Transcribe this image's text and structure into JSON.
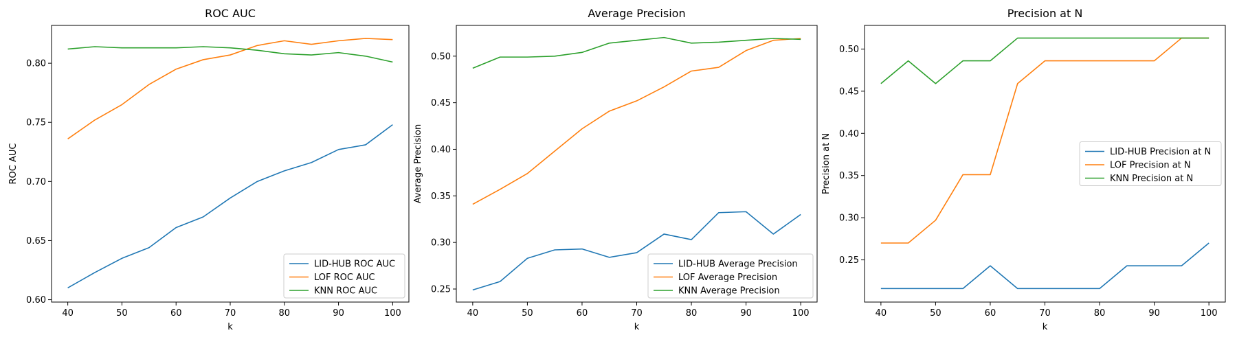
{
  "colors": {
    "blue": "#1f77b4",
    "orange": "#ff7f0e",
    "green": "#2ca02c"
  },
  "chart_data": [
    {
      "type": "line",
      "title": "ROC AUC",
      "xlabel": "k",
      "ylabel": "ROC AUC",
      "x": [
        40,
        45,
        50,
        55,
        60,
        65,
        70,
        75,
        80,
        85,
        90,
        95,
        100
      ],
      "xlim": [
        37,
        103
      ],
      "ylim": [
        0.598,
        0.832
      ],
      "xticks": [
        40,
        50,
        60,
        70,
        80,
        90,
        100
      ],
      "yticks": [
        0.6,
        0.65,
        0.7,
        0.75,
        0.8
      ],
      "ytick_decimals": 2,
      "legend_position": "bottom-right",
      "grid": false,
      "series": [
        {
          "name": "LID-HUB ROC AUC",
          "color": "#1f77b4",
          "values": [
            0.61,
            0.623,
            0.635,
            0.644,
            0.661,
            0.67,
            0.686,
            0.7,
            0.709,
            0.716,
            0.727,
            0.731,
            0.748
          ]
        },
        {
          "name": "LOF ROC AUC",
          "color": "#ff7f0e",
          "values": [
            0.736,
            0.752,
            0.765,
            0.782,
            0.795,
            0.803,
            0.807,
            0.815,
            0.819,
            0.816,
            0.819,
            0.821,
            0.82
          ]
        },
        {
          "name": "KNN ROC AUC",
          "color": "#2ca02c",
          "values": [
            0.812,
            0.814,
            0.813,
            0.813,
            0.813,
            0.814,
            0.813,
            0.811,
            0.808,
            0.807,
            0.809,
            0.806,
            0.801
          ]
        }
      ]
    },
    {
      "type": "line",
      "title": "Average Precision",
      "xlabel": "k",
      "ylabel": "Average Precision",
      "x": [
        40,
        45,
        50,
        55,
        60,
        65,
        70,
        75,
        80,
        85,
        90,
        95,
        100
      ],
      "xlim": [
        37,
        103
      ],
      "ylim": [
        0.236,
        0.533
      ],
      "xticks": [
        40,
        50,
        60,
        70,
        80,
        90,
        100
      ],
      "yticks": [
        0.25,
        0.3,
        0.35,
        0.4,
        0.45,
        0.5
      ],
      "ytick_decimals": 2,
      "legend_position": "bottom-right",
      "grid": false,
      "series": [
        {
          "name": "LID-HUB Average Precision",
          "color": "#1f77b4",
          "values": [
            0.249,
            0.258,
            0.283,
            0.292,
            0.293,
            0.284,
            0.289,
            0.309,
            0.303,
            0.332,
            0.333,
            0.309,
            0.33
          ]
        },
        {
          "name": "LOF Average Precision",
          "color": "#ff7f0e",
          "values": [
            0.341,
            0.357,
            0.374,
            0.398,
            0.422,
            0.441,
            0.452,
            0.467,
            0.484,
            0.488,
            0.506,
            0.517,
            0.519
          ]
        },
        {
          "name": "KNN Average Precision",
          "color": "#2ca02c",
          "values": [
            0.487,
            0.499,
            0.499,
            0.5,
            0.504,
            0.514,
            0.517,
            0.52,
            0.514,
            0.515,
            0.517,
            0.519,
            0.518
          ]
        }
      ]
    },
    {
      "type": "line",
      "title": "Precision at N",
      "xlabel": "k",
      "ylabel": "Precision at N",
      "x": [
        40,
        45,
        50,
        55,
        60,
        65,
        70,
        75,
        80,
        85,
        90,
        95,
        100
      ],
      "xlim": [
        37,
        103
      ],
      "ylim": [
        0.2,
        0.528
      ],
      "xticks": [
        40,
        50,
        60,
        70,
        80,
        90,
        100
      ],
      "yticks": [
        0.25,
        0.3,
        0.35,
        0.4,
        0.45,
        0.5
      ],
      "ytick_decimals": 2,
      "legend_position": "center-right",
      "grid": false,
      "series": [
        {
          "name": "LID-HUB Precision at N",
          "color": "#1f77b4",
          "values": [
            0.216,
            0.216,
            0.216,
            0.216,
            0.243,
            0.216,
            0.216,
            0.216,
            0.216,
            0.243,
            0.243,
            0.243,
            0.27
          ]
        },
        {
          "name": "LOF Precision at N",
          "color": "#ff7f0e",
          "values": [
            0.27,
            0.27,
            0.297,
            0.351,
            0.351,
            0.459,
            0.486,
            0.486,
            0.486,
            0.486,
            0.486,
            0.513,
            0.513
          ]
        },
        {
          "name": "KNN Precision at N",
          "color": "#2ca02c",
          "values": [
            0.459,
            0.486,
            0.459,
            0.486,
            0.486,
            0.513,
            0.513,
            0.513,
            0.513,
            0.513,
            0.513,
            0.513,
            0.513
          ]
        }
      ]
    }
  ]
}
